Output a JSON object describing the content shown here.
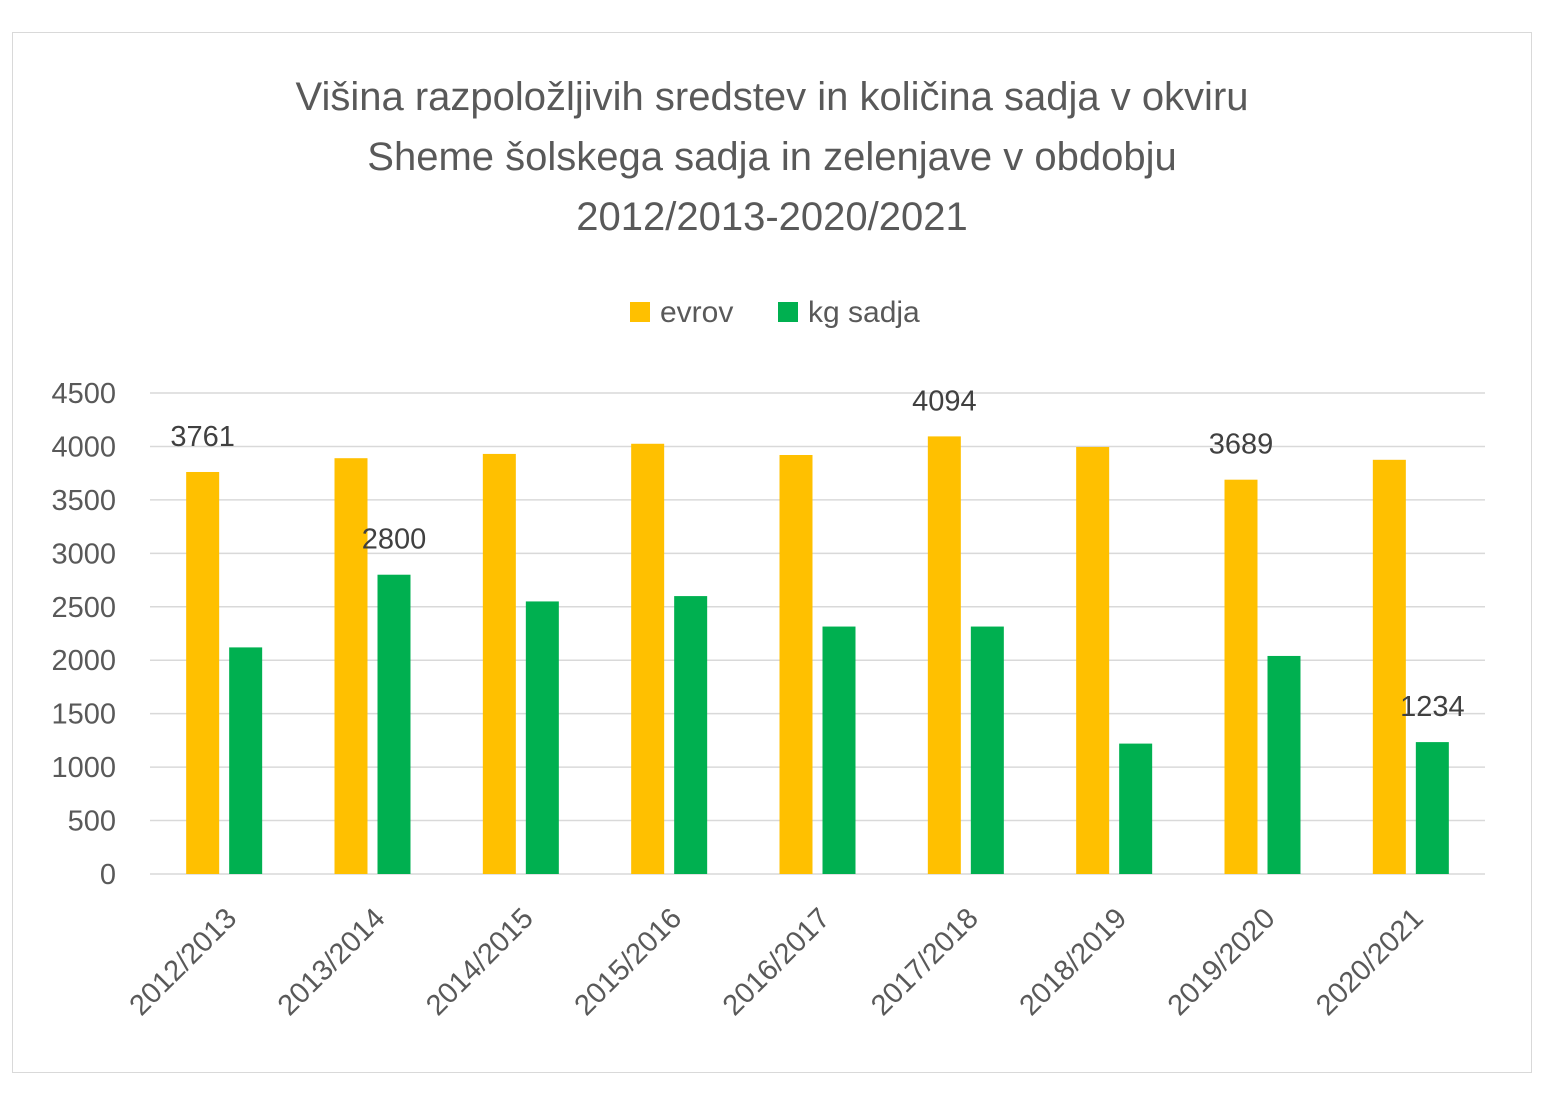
{
  "chart_data": {
    "type": "bar",
    "title_lines": [
      "Višina razpoložljivih sredstev in količina sadja v okviru",
      "Sheme šolskega sadja in zelenjave v obdobju",
      "2012/2013-2020/2021"
    ],
    "categories": [
      "2012/2013",
      "2013/2014",
      "2014/2015",
      "2015/2016",
      "2016/2017",
      "2017/2018",
      "2018/2019",
      "2019/2020",
      "2020/2021"
    ],
    "series": [
      {
        "name": "evrov",
        "color": "#FFC000",
        "values": [
          3761,
          3890,
          3930,
          4025,
          3920,
          4094,
          3995,
          3689,
          3875
        ]
      },
      {
        "name": "kg sadja",
        "color": "#00B050",
        "values": [
          2120,
          2800,
          2550,
          2600,
          2315,
          2315,
          1220,
          2040,
          1234
        ]
      }
    ],
    "data_labels": [
      {
        "series": 0,
        "index": 0,
        "text": "3761"
      },
      {
        "series": 1,
        "index": 1,
        "text": "2800"
      },
      {
        "series": 0,
        "index": 5,
        "text": "4094"
      },
      {
        "series": 0,
        "index": 7,
        "text": "3689"
      },
      {
        "series": 1,
        "index": 8,
        "text": "1234"
      }
    ],
    "yticks": [
      "0",
      "500",
      "1000",
      "1500",
      "2000",
      "2500",
      "3000",
      "3500",
      "4000",
      "4500"
    ],
    "ylim": [
      0,
      4500
    ],
    "grid": true,
    "legend": "top"
  }
}
